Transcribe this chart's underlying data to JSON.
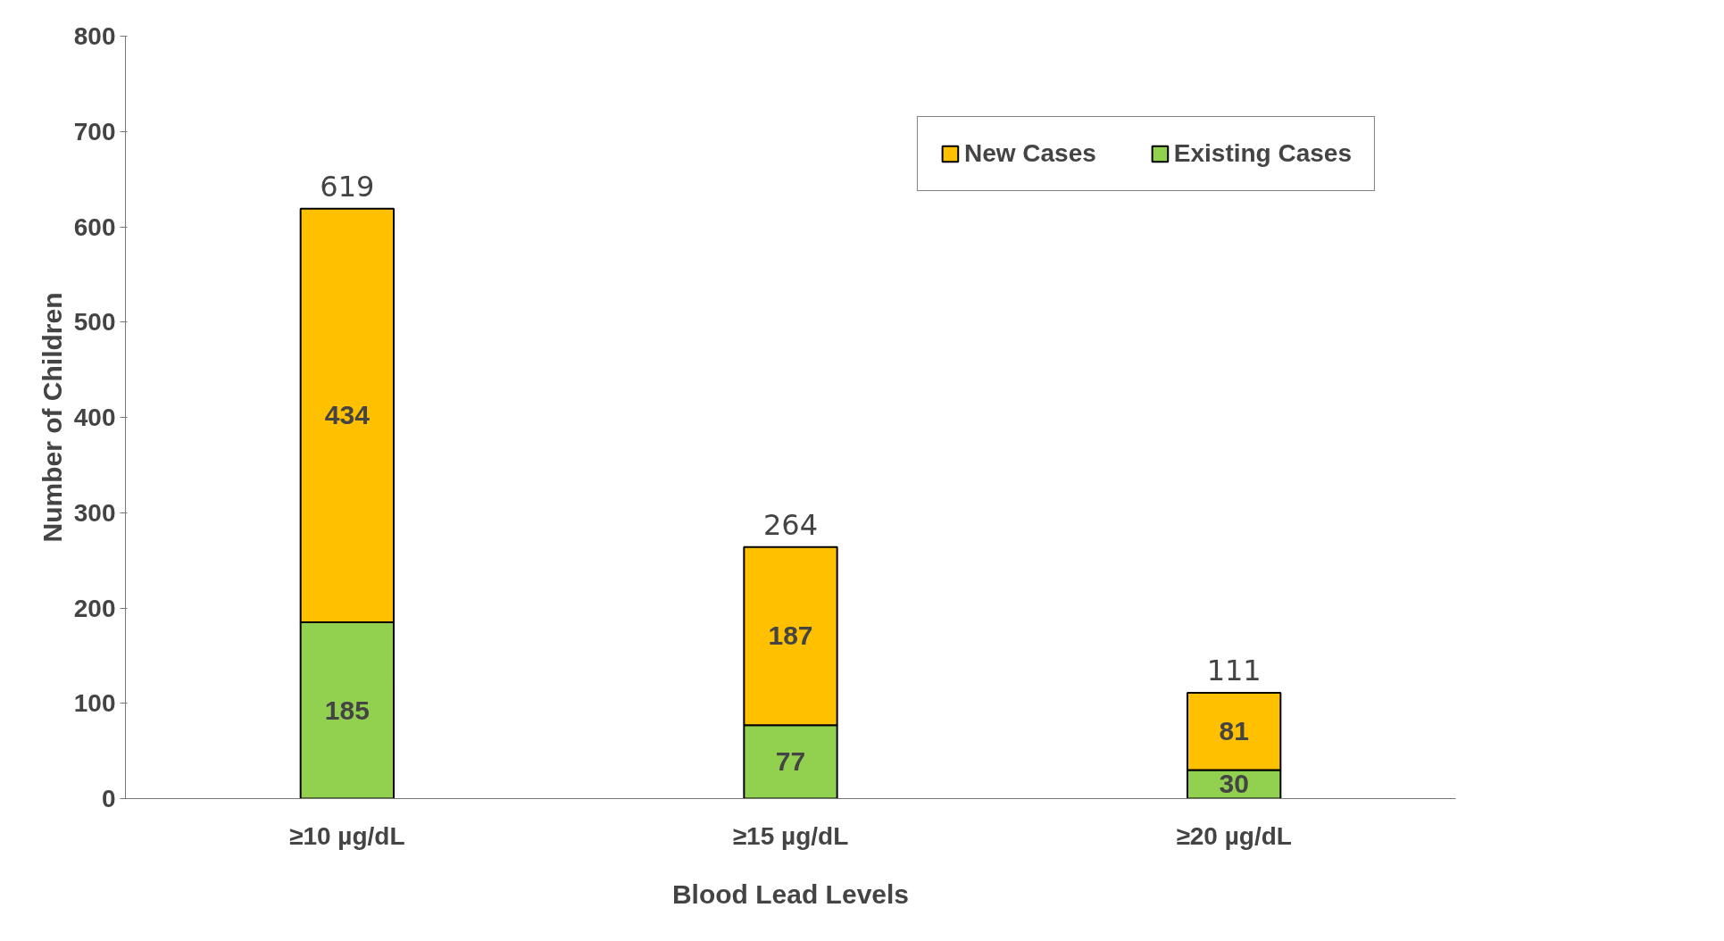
{
  "chart_data": {
    "type": "bar",
    "stacked": true,
    "xlabel": "Blood Lead Levels",
    "ylabel": "Number of Children",
    "categories": [
      "≥10 µg/dL",
      "≥15 µg/dL",
      "≥20 µg/dL"
    ],
    "series": [
      {
        "name": "Existing Cases",
        "color": "#92d050",
        "values": [
          185,
          77,
          30
        ]
      },
      {
        "name": "New Cases",
        "color": "#ffc000",
        "values": [
          434,
          187,
          81
        ]
      }
    ],
    "totals": [
      "619",
      "264",
      "111"
    ],
    "data_labels": true,
    "ylim": [
      0,
      800
    ],
    "yticks": [
      0,
      100,
      200,
      300,
      400,
      500,
      600,
      700,
      800
    ],
    "grid": false,
    "legend": "top right"
  }
}
